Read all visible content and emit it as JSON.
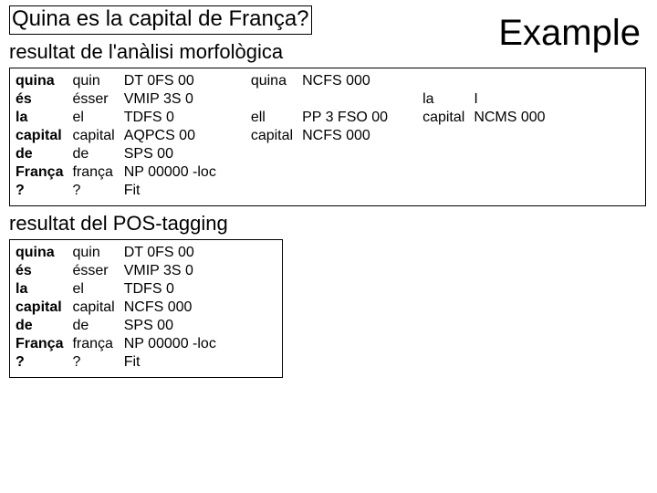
{
  "title": "Quina es la capital de França?",
  "example_label": "Example",
  "heading1": "resultat de l'anàlisi morfològica",
  "heading2": "resultat del  POS-tagging",
  "morf_main": [
    {
      "w": "quina",
      "l": "quin",
      "t": "DT 0FS 00"
    },
    {
      "w": "és",
      "l": "ésser",
      "t": "VMIP 3S 0"
    },
    {
      "w": "la",
      "l": "el",
      "t": "TDFS 0"
    },
    {
      "w": "capital",
      "l": "capital",
      "t": "AQPCS 00"
    },
    {
      "w": "de",
      "l": "de",
      "t": "SPS 00"
    },
    {
      "w": "França",
      "l": "frança",
      "t": "NP 00000 -loc"
    },
    {
      "w": "?",
      "l": "?",
      "t": "Fit"
    }
  ],
  "morf_extra1": [
    {
      "w": "quina",
      "t": "NCFS 000"
    },
    {
      "w": "",
      "t": ""
    },
    {
      "w": "ell",
      "t": "PP 3 FSO 00"
    },
    {
      "w": "capital",
      "t": "NCFS 000"
    }
  ],
  "morf_extra2": [
    {
      "w": "",
      "t": ""
    },
    {
      "w": "",
      "t": ""
    },
    {
      "w": "la",
      "t": "I"
    },
    {
      "w": "capital",
      "t": "NCMS 000"
    }
  ],
  "pos": [
    {
      "w": "quina",
      "l": "quin",
      "t": "DT 0FS 00"
    },
    {
      "w": "és",
      "l": "ésser",
      "t": "VMIP 3S 0"
    },
    {
      "w": "la",
      "l": "el",
      "t": "TDFS 0"
    },
    {
      "w": "capital",
      "l": "capital",
      "t": "NCFS 000"
    },
    {
      "w": "de",
      "l": "de",
      "t": "SPS 00"
    },
    {
      "w": "França",
      "l": "frança",
      "t": "NP 00000 -loc"
    },
    {
      "w": "?",
      "l": "?",
      "t": "Fit"
    }
  ]
}
